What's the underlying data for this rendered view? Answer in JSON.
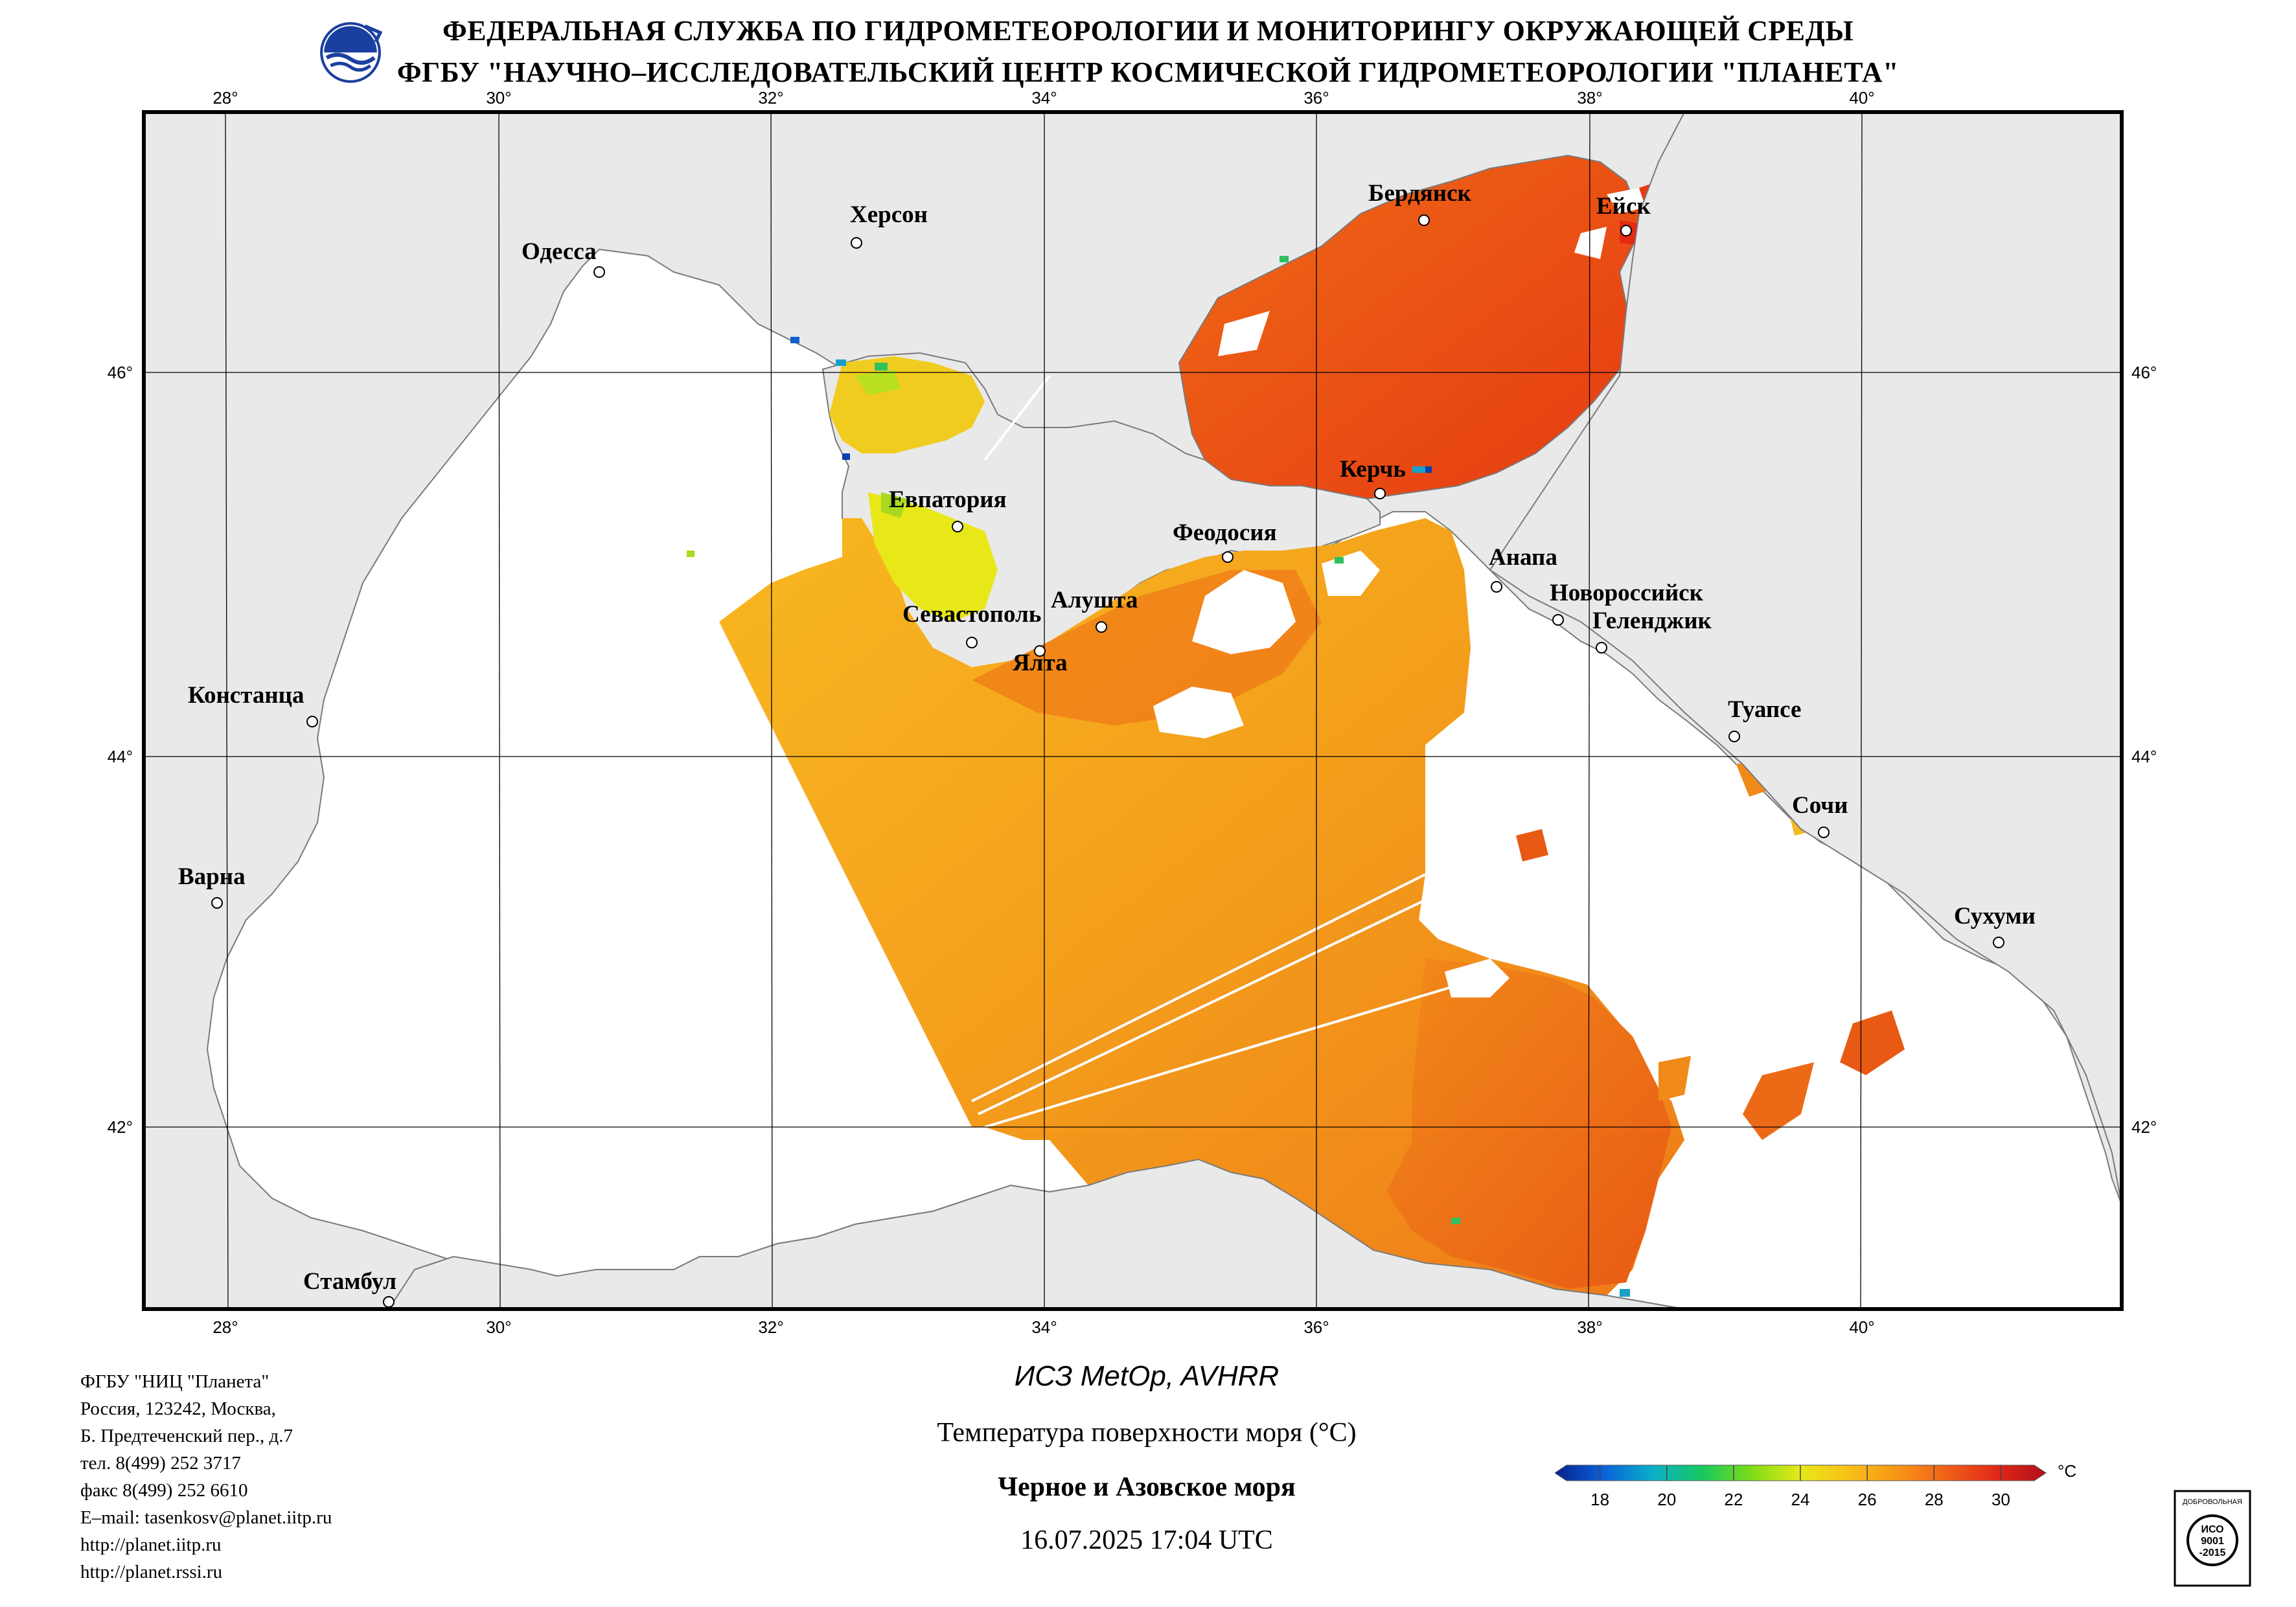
{
  "header": {
    "line1": "ФЕДЕРАЛЬНАЯ СЛУЖБА ПО ГИДРОМЕТЕОРОЛОГИИ И МОНИТОРИНГУ ОКРУЖАЮЩЕЙ СРЕДЫ",
    "line2": "ФГБУ \"НАУЧНО–ИССЛЕДОВАТЕЛЬСКИЙ ЦЕНТР КОСМИЧЕСКОЙ ГИДРОМЕТЕОРОЛОГИИ \"ПЛАНЕТА\""
  },
  "map": {
    "lon_ticks": [
      "28°",
      "30°",
      "32°",
      "34°",
      "36°",
      "38°",
      "40°"
    ],
    "lat_ticks": [
      "46°",
      "44°",
      "42°"
    ],
    "cities": [
      "Херсон",
      "Одесса",
      "Бердянск",
      "Ейск",
      "Керчь",
      "Евпатория",
      "Феодосия",
      "Анапа",
      "Новороссийск",
      "Геленджик",
      "Севастополь",
      "Алушта",
      "Ялта",
      "Констанца",
      "Туапсе",
      "Сочи",
      "Варна",
      "Сухуми",
      "Стамбул"
    ]
  },
  "colors": {
    "land": "#e9e9e9",
    "sea_nodata": "#ffffff",
    "sst_warm": "#f5a81e",
    "sst_hot": "#ec5a12",
    "sst_very_hot": "#e42a10"
  },
  "org": {
    "lines": [
      "ФГБУ \"НИЦ \"Планета\"",
      "Россия, 123242, Москва,",
      "Б. Предтеченский пер., д.7",
      "тел. 8(499) 252 3717",
      "факс 8(499) 252 6610",
      "E–mail: tasenkosv@planet.iitp.ru",
      "http://planet.iitp.ru",
      "http://planet.rssi.ru"
    ]
  },
  "caption": {
    "satellite": "ИСЗ MetOp, AVHRR",
    "parameter": "Температура поверхности моря (°С)",
    "region": "Черное и Азовское моря",
    "datetime": "16.07.2025 17:04 UTC"
  },
  "colorbar": {
    "unit": "°С",
    "ticks": [
      "18",
      "20",
      "22",
      "24",
      "26",
      "28",
      "30"
    ],
    "min": 17,
    "max": 31,
    "stops": [
      "#08208c",
      "#0a62d8",
      "#0ab0c8",
      "#18c860",
      "#7edc18",
      "#e8e818",
      "#f8c018",
      "#f89418",
      "#f06018",
      "#e02818",
      "#b0101c"
    ]
  },
  "cert": {
    "line_top": "ДОБРОВОЛЬНАЯ",
    "iso1": "ИСО",
    "iso2": "9001",
    "iso3": "-2015"
  }
}
